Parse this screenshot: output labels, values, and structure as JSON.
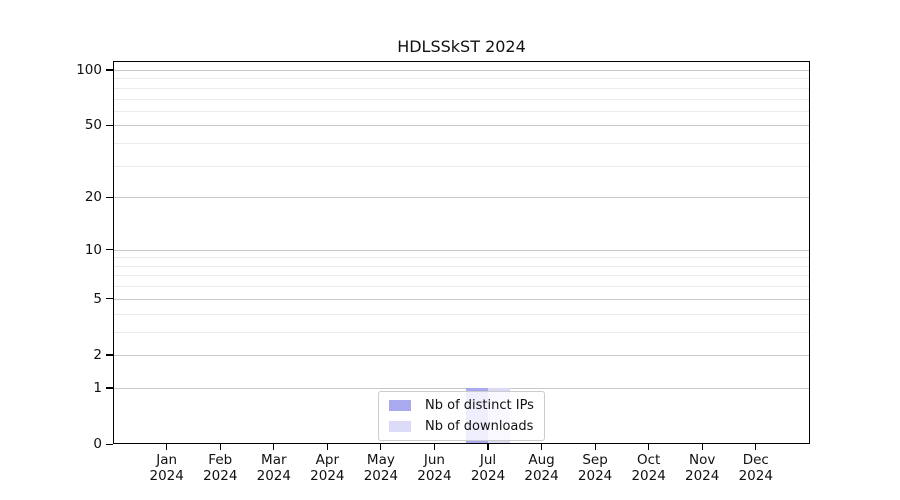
{
  "chart_data": {
    "type": "bar",
    "title": "HDLSSkST 2024",
    "categories": [
      {
        "label": "Jan",
        "sublabel": "2024"
      },
      {
        "label": "Feb",
        "sublabel": "2024"
      },
      {
        "label": "Mar",
        "sublabel": "2024"
      },
      {
        "label": "Apr",
        "sublabel": "2024"
      },
      {
        "label": "May",
        "sublabel": "2024"
      },
      {
        "label": "Jun",
        "sublabel": "2024"
      },
      {
        "label": "Jul",
        "sublabel": "2024"
      },
      {
        "label": "Aug",
        "sublabel": "2024"
      },
      {
        "label": "Sep",
        "sublabel": "2024"
      },
      {
        "label": "Oct",
        "sublabel": "2024"
      },
      {
        "label": "Nov",
        "sublabel": "2024"
      },
      {
        "label": "Dec",
        "sublabel": "2024"
      }
    ],
    "series": [
      {
        "name": "Nb of distinct IPs",
        "color": "#a9a9f0",
        "values": [
          0,
          0,
          0,
          0,
          0,
          0,
          1,
          0,
          0,
          0,
          0,
          0
        ]
      },
      {
        "name": "Nb of downloads",
        "color": "#dbdbf7",
        "values": [
          0,
          0,
          0,
          0,
          0,
          0,
          1,
          0,
          0,
          0,
          0,
          0
        ]
      }
    ],
    "y_axis": {
      "scale": "log1p",
      "tick_values": [
        100,
        50,
        20,
        10,
        5,
        2,
        1,
        0
      ],
      "minor_gridline_values": [
        90,
        80,
        70,
        60,
        40,
        30,
        9,
        8,
        7,
        6,
        4,
        3
      ],
      "range": [
        0,
        112
      ]
    },
    "grid": true,
    "legend_position": "lower center",
    "colors": {
      "major_grid": "#c9c9c9",
      "minor_grid": "#eaeaea",
      "axis": "#000000",
      "text": "#111111"
    }
  }
}
